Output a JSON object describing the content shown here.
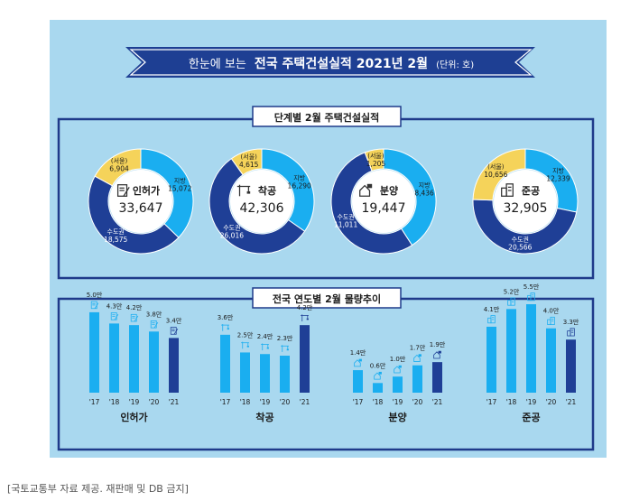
{
  "title": {
    "prefix": "한눈에 보는",
    "main": "전국 주택건설실적 2021년 2월",
    "unit": "(단위: 호)"
  },
  "colors": {
    "background": "#a9d8ef",
    "panel_border": "#1f3a8a",
    "banner": "#1e3f93",
    "seoul": "#f5d35a",
    "metro": "#1f3f96",
    "local": "#1aaef0",
    "bar_light": "#1aaef0",
    "bar_dark": "#1f3f96"
  },
  "panel1": {
    "title": "단계별 2월 주택건설실적"
  },
  "panel2": {
    "title": "전국 연도별 2월 물량추이"
  },
  "chart_data": [
    {
      "type": "pie",
      "variant": "donut",
      "title": "단계별 2월 주택건설실적",
      "donuts": [
        {
          "name": "인허가",
          "total": "33,647",
          "icon": "document-pen-icon",
          "slices": [
            {
              "label": "(서울)",
              "display": "6,904",
              "value": 6904
            },
            {
              "label": "수도권",
              "display": "18,575",
              "value": 18575
            },
            {
              "label": "지방",
              "display": "15,072",
              "value": 15072
            }
          ]
        },
        {
          "name": "착공",
          "total": "42,306",
          "icon": "crane-icon",
          "slices": [
            {
              "label": "(서울)",
              "display": "4,615",
              "value": 4615
            },
            {
              "label": "수도권",
              "display": "26,016",
              "value": 26016
            },
            {
              "label": "지방",
              "display": "16,290",
              "value": 16290
            }
          ]
        },
        {
          "name": "분양",
          "total": "19,447",
          "icon": "house-sale-icon",
          "slices": [
            {
              "label": "(서울)",
              "display": "1,205",
              "value": 1205
            },
            {
              "label": "수도권",
              "display": "11,011",
              "value": 11011
            },
            {
              "label": "지방",
              "display": "8,436",
              "value": 8436
            }
          ]
        },
        {
          "name": "준공",
          "total": "32,905",
          "icon": "building-icon",
          "slices": [
            {
              "label": "(서울)",
              "display": "10,656",
              "value": 10656
            },
            {
              "label": "수도권",
              "display": "20,566",
              "value": 20566
            },
            {
              "label": "지방",
              "display": "12,339",
              "value": 12339
            }
          ]
        }
      ]
    },
    {
      "type": "bar",
      "title": "전국 연도별 2월 물량추이",
      "ylim": [
        0,
        5.5
      ],
      "groups": [
        {
          "name": "인허가",
          "icon": "document-pen-icon",
          "categories": [
            "'17",
            "'18",
            "'19",
            "'20",
            "'21"
          ],
          "values": [
            5.0,
            4.3,
            4.2,
            3.8,
            3.4
          ],
          "labels": [
            "5.0만",
            "4.3만",
            "4.2만",
            "3.8만",
            "3.4만"
          ]
        },
        {
          "name": "착공",
          "icon": "crane-icon",
          "categories": [
            "'17",
            "'18",
            "'19",
            "'20",
            "'21"
          ],
          "values": [
            3.6,
            2.5,
            2.4,
            2.3,
            4.2
          ],
          "labels": [
            "3.6만",
            "2.5만",
            "2.4만",
            "2.3만",
            "4.2만"
          ]
        },
        {
          "name": "분양",
          "icon": "house-sale-icon",
          "categories": [
            "'17",
            "'18",
            "'19",
            "'20",
            "'21"
          ],
          "values": [
            1.4,
            0.6,
            1.0,
            1.7,
            1.9
          ],
          "labels": [
            "1.4만",
            "0.6만",
            "1.0만",
            "1.7만",
            "1.9만"
          ]
        },
        {
          "name": "준공",
          "icon": "building-icon",
          "categories": [
            "'17",
            "'18",
            "'19",
            "'20",
            "'21"
          ],
          "values": [
            4.1,
            5.2,
            5.5,
            4.0,
            3.3
          ],
          "labels": [
            "4.1만",
            "5.2만",
            "5.5만",
            "4.0만",
            "3.3만"
          ]
        }
      ]
    }
  ],
  "caption": "[국토교통부 자료 제공. 재판매 및 DB 금지]"
}
